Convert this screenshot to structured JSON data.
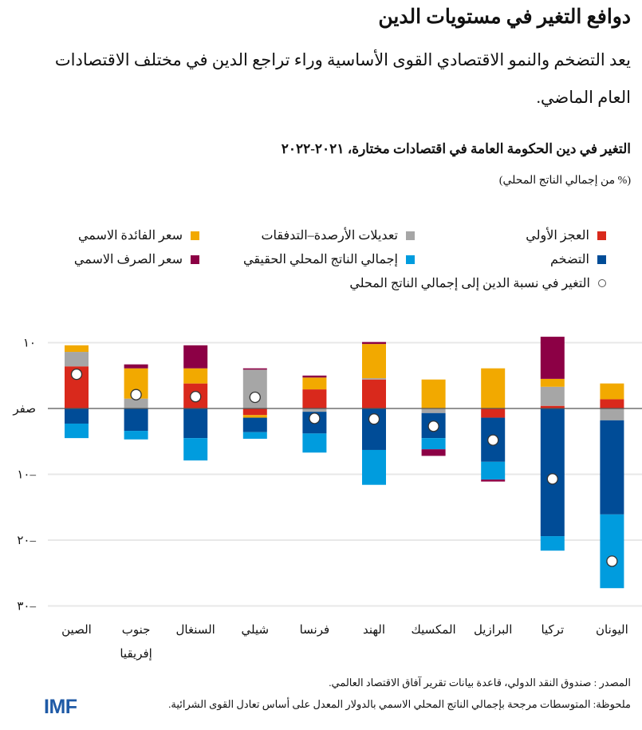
{
  "header": {
    "title": "دوافع التغير في مستويات الدين",
    "subtitle": "يعد التضخم والنمو الاقتصادي القوى الأساسية وراء تراجع الدين في مختلف الاقتصادات العام الماضي."
  },
  "footer": {
    "source": "المصدر : صندوق النقد الدولي، قاعدة بيانات تقرير آفاق الاقتصاد العالمي.",
    "note": "ملحوظة: المتوسطات مرجحة بإجمالي الناتج المحلي الاسمي بالدولار المعدل على أساس تعادل القوى الشرائية.",
    "logo": "IMF"
  },
  "chart_data": {
    "type": "bar",
    "stacked": true,
    "title": "التغير في دين الحكومة العامة في اقتصادات مختارة، ٢٠٢١-٢٠٢٢",
    "unit": "(% من إجمالي الناتج المحلي)",
    "categories": [
      "الصين",
      "جنوب إفريقيا",
      "السنغال",
      "شيلي",
      "فرنسا",
      "الهند",
      "المكسيك",
      "البرازيل",
      "تركيا",
      "اليونان"
    ],
    "ylim": [
      -30,
      10
    ],
    "yticks": [
      10,
      0,
      -10,
      -20,
      -30
    ],
    "ytick_labels": [
      "١٠",
      "صفر",
      "١٠–",
      "٢٠–",
      "٣٠–"
    ],
    "grid": true,
    "legend_position": "top",
    "series": [
      {
        "name": "العجز الأولي",
        "color": "#d9291c",
        "values": [
          6.4,
          0,
          3.8,
          -1.0,
          2.9,
          4.4,
          0,
          -1.4,
          0.4,
          1.4
        ]
      },
      {
        "name": "تعديلات الأرصدة–التدفقات",
        "color": "#a6a6a6",
        "values": [
          2.2,
          1.5,
          0,
          5.9,
          -0.5,
          0.2,
          -0.7,
          0,
          2.9,
          -1.8
        ]
      },
      {
        "name": "سعر الفائدة الاسمي",
        "color": "#f2a900",
        "values": [
          1.0,
          4.6,
          2.3,
          -0.4,
          1.8,
          5.2,
          4.4,
          6.1,
          1.2,
          2.4
        ]
      },
      {
        "name": "التضخم",
        "color": "#004c97",
        "values": [
          -2.3,
          -3.4,
          -4.5,
          -2.2,
          -3.3,
          -6.3,
          -3.8,
          -6.7,
          -19.4,
          -14.3
        ]
      },
      {
        "name": "إجمالي الناتج المحلي الحقيقي",
        "color": "#009cde",
        "values": [
          -2.2,
          -1.3,
          -3.4,
          -1.0,
          -2.9,
          -5.3,
          -1.7,
          -2.7,
          -2.2,
          -11.2
        ]
      },
      {
        "name": "سعر الصرف الاسمي",
        "color": "#8c0045",
        "values": [
          0,
          0.6,
          3.5,
          0.2,
          0.3,
          0.3,
          -1.0,
          -0.3,
          6.4,
          0
        ]
      }
    ],
    "points": {
      "name": "التغير في نسبة الدين إلى إجمالي الناتج المحلي",
      "values": [
        5.2,
        2.1,
        1.8,
        1.7,
        -1.5,
        -1.6,
        -2.7,
        -4.8,
        -10.7,
        -23.2
      ]
    }
  }
}
